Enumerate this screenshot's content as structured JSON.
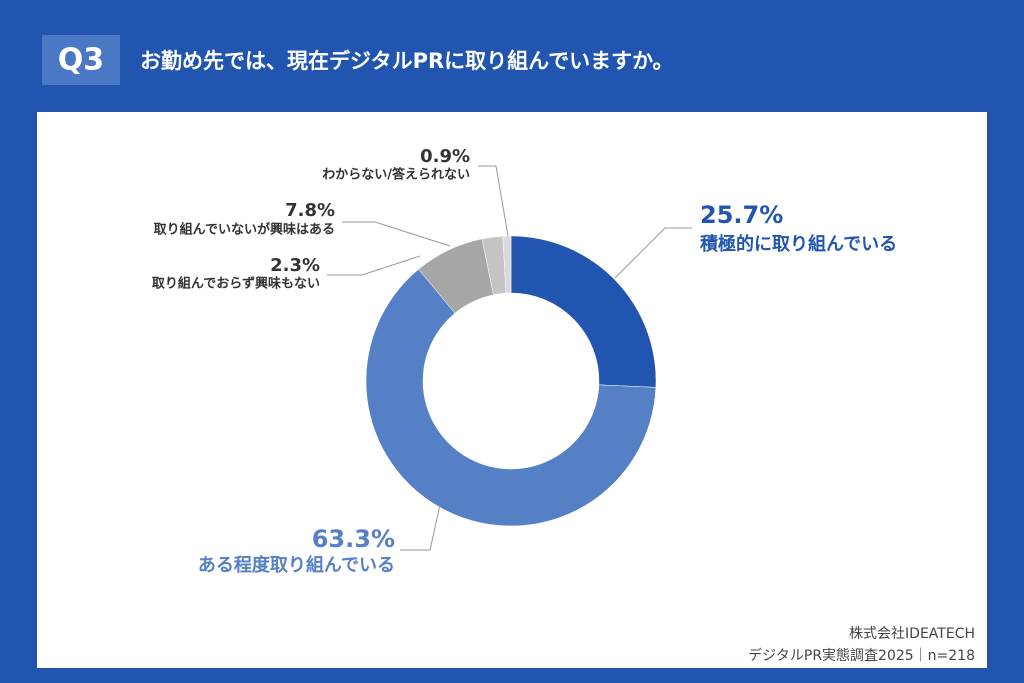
{
  "header": {
    "badge": "Q3",
    "title": "お勤め先では、現在デジタルPRに取り組んでいますか。"
  },
  "chart_data": {
    "type": "donut",
    "categories": [
      "積極的に取り組んでいる",
      "ある程度取り組んでいる",
      "取り組んでいないが興味はある",
      "取り組んでおらず興味もない",
      "わからない/答えられない"
    ],
    "values": [
      25.7,
      63.3,
      7.8,
      2.3,
      0.9
    ],
    "value_labels": [
      "25.7%",
      "63.3%",
      "7.8%",
      "2.3%",
      "0.9%"
    ],
    "colors": [
      "#2155b0",
      "#5680c6",
      "#a6a6a6",
      "#c4c4c4",
      "#d9d9d9"
    ]
  },
  "footer": {
    "company": "株式会社IDEATECH",
    "survey": "デジタルPR実態調査2025｜n=218"
  }
}
